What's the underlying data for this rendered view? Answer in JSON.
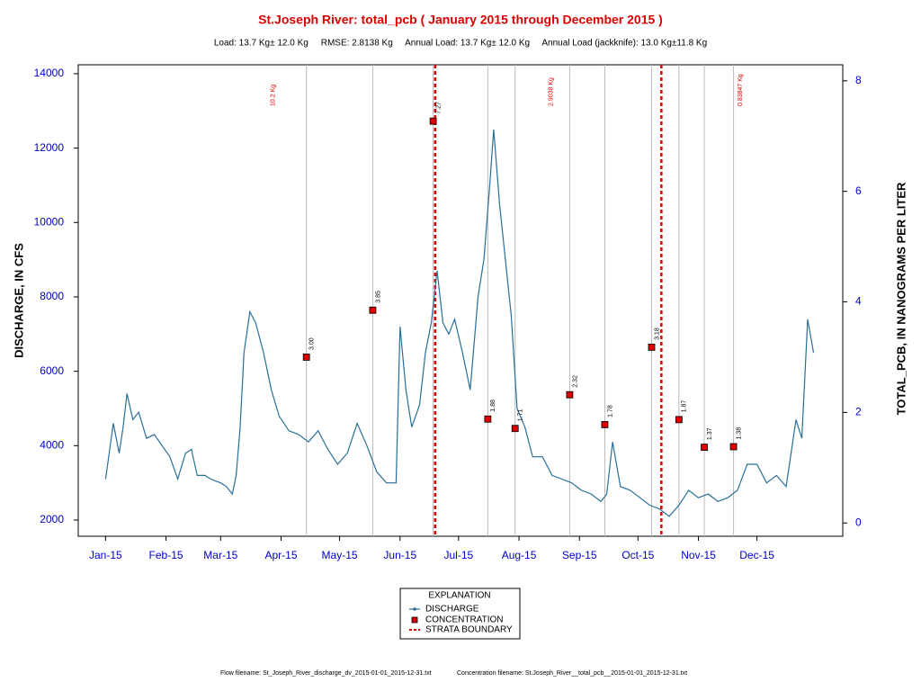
{
  "chart_data": {
    "type": "line",
    "title": "St.Joseph River:  total_pcb ( January 2015 through December 2015 )",
    "subtitle": "Load: 13.7 Kg± 12.0 Kg     RMSE: 2.8138 Kg     Annual Load: 13.7 Kg± 12.0 Kg     Annual Load (jackknife): 13.0 Kg±11.8 Kg",
    "y_label": "DISCHARGE, IN CFS",
    "y2_label": "TOTAL_PCB, IN NANOGRAMS PER LITER",
    "xlim": [
      -13,
      379
    ],
    "xticks": [
      {
        "value": 1,
        "label": "Jan-15"
      },
      {
        "value": 32,
        "label": "Feb-15"
      },
      {
        "value": 60,
        "label": "Mar-15"
      },
      {
        "value": 91,
        "label": "Apr-15"
      },
      {
        "value": 121,
        "label": "May-15"
      },
      {
        "value": 152,
        "label": "Jun-15"
      },
      {
        "value": 182,
        "label": "Jul-15"
      },
      {
        "value": 213,
        "label": "Aug-15"
      },
      {
        "value": 244,
        "label": "Sep-15"
      },
      {
        "value": 274,
        "label": "Oct-15"
      },
      {
        "value": 305,
        "label": "Nov-15"
      },
      {
        "value": 335,
        "label": "Dec-15"
      }
    ],
    "ylim": [
      1565,
      14240
    ],
    "yticks": [
      2000,
      4000,
      6000,
      8000,
      10000,
      12000,
      14000
    ],
    "y2lim": [
      -0.24,
      8.29
    ],
    "y2ticks": [
      0,
      2,
      4,
      6,
      8
    ],
    "series": [
      {
        "name": "DISCHARGE",
        "color": "#2a6f97",
        "x": [
          1,
          5,
          8,
          10,
          12,
          15,
          18,
          22,
          26,
          30,
          34,
          38,
          42,
          45,
          48,
          52,
          55,
          60,
          63,
          66,
          68,
          70,
          72,
          75,
          78,
          82,
          86,
          90,
          95,
          100,
          105,
          110,
          115,
          120,
          125,
          130,
          135,
          140,
          145,
          150,
          152,
          155,
          158,
          162,
          165,
          168,
          171,
          174,
          177,
          180,
          184,
          188,
          192,
          195,
          198,
          200,
          203,
          206,
          209,
          212,
          216,
          220,
          225,
          230,
          235,
          240,
          245,
          250,
          255,
          258,
          261,
          265,
          270,
          275,
          280,
          285,
          290,
          295,
          300,
          305,
          310,
          315,
          320,
          325,
          330,
          335,
          340,
          345,
          350,
          355,
          358,
          361,
          364
        ],
        "values": [
          3100,
          4600,
          3800,
          4500,
          5400,
          4700,
          4900,
          4200,
          4300,
          4000,
          3700,
          3100,
          3800,
          3900,
          3200,
          3200,
          3100,
          3000,
          2900,
          2700,
          3200,
          4500,
          6500,
          7600,
          7300,
          6500,
          5500,
          4800,
          4400,
          4300,
          4100,
          4400,
          3900,
          3500,
          3800,
          4600,
          4000,
          3300,
          3000,
          3000,
          7200,
          5500,
          4500,
          5100,
          6500,
          7300,
          8700,
          7300,
          7000,
          7400,
          6500,
          5500,
          8000,
          9000,
          11000,
          12500,
          10500,
          9000,
          7500,
          5000,
          4500,
          3700,
          3700,
          3200,
          3100,
          3000,
          2800,
          2700,
          2500,
          2700,
          4100,
          2900,
          2800,
          2600,
          2400,
          2300,
          2100,
          2400,
          2800,
          2600,
          2700,
          2500,
          2600,
          2800,
          3500,
          3500,
          3000,
          3200,
          2900,
          4700,
          4200,
          7400,
          6500
        ]
      },
      {
        "name": "CONCENTRATION",
        "color": "#dd0000",
        "axis": "y2",
        "x": [
          104,
          138,
          169,
          197,
          211,
          239,
          257,
          281,
          295,
          308,
          323
        ],
        "values": [
          3.0,
          3.85,
          7.27,
          1.88,
          1.71,
          2.32,
          1.78,
          3.18,
          1.87,
          1.37,
          1.38
        ],
        "value_labels": [
          "3.00",
          "3.85",
          "7.27",
          "1.88",
          "1.71",
          "2.32",
          "1.78",
          "3.18",
          "1.87",
          "1.37",
          "1.38"
        ]
      }
    ],
    "boundaries": {
      "name": "STRATA BOUNDARY",
      "color": "#dd0000",
      "x": [
        170,
        286
      ]
    },
    "strata_loads": [
      "10.2 Kg",
      "2.9038 Kg",
      "0.83847 Kg"
    ],
    "legend_title": "EXPLANATION",
    "footer": [
      "Flow filename: St_Joseph_River_discharge_dv_2015-01-01_2015-12-31.txt",
      "Concentration filename: St.Joseph_River__total_pcb__2015-01-01_2015-12-31.txt"
    ]
  }
}
